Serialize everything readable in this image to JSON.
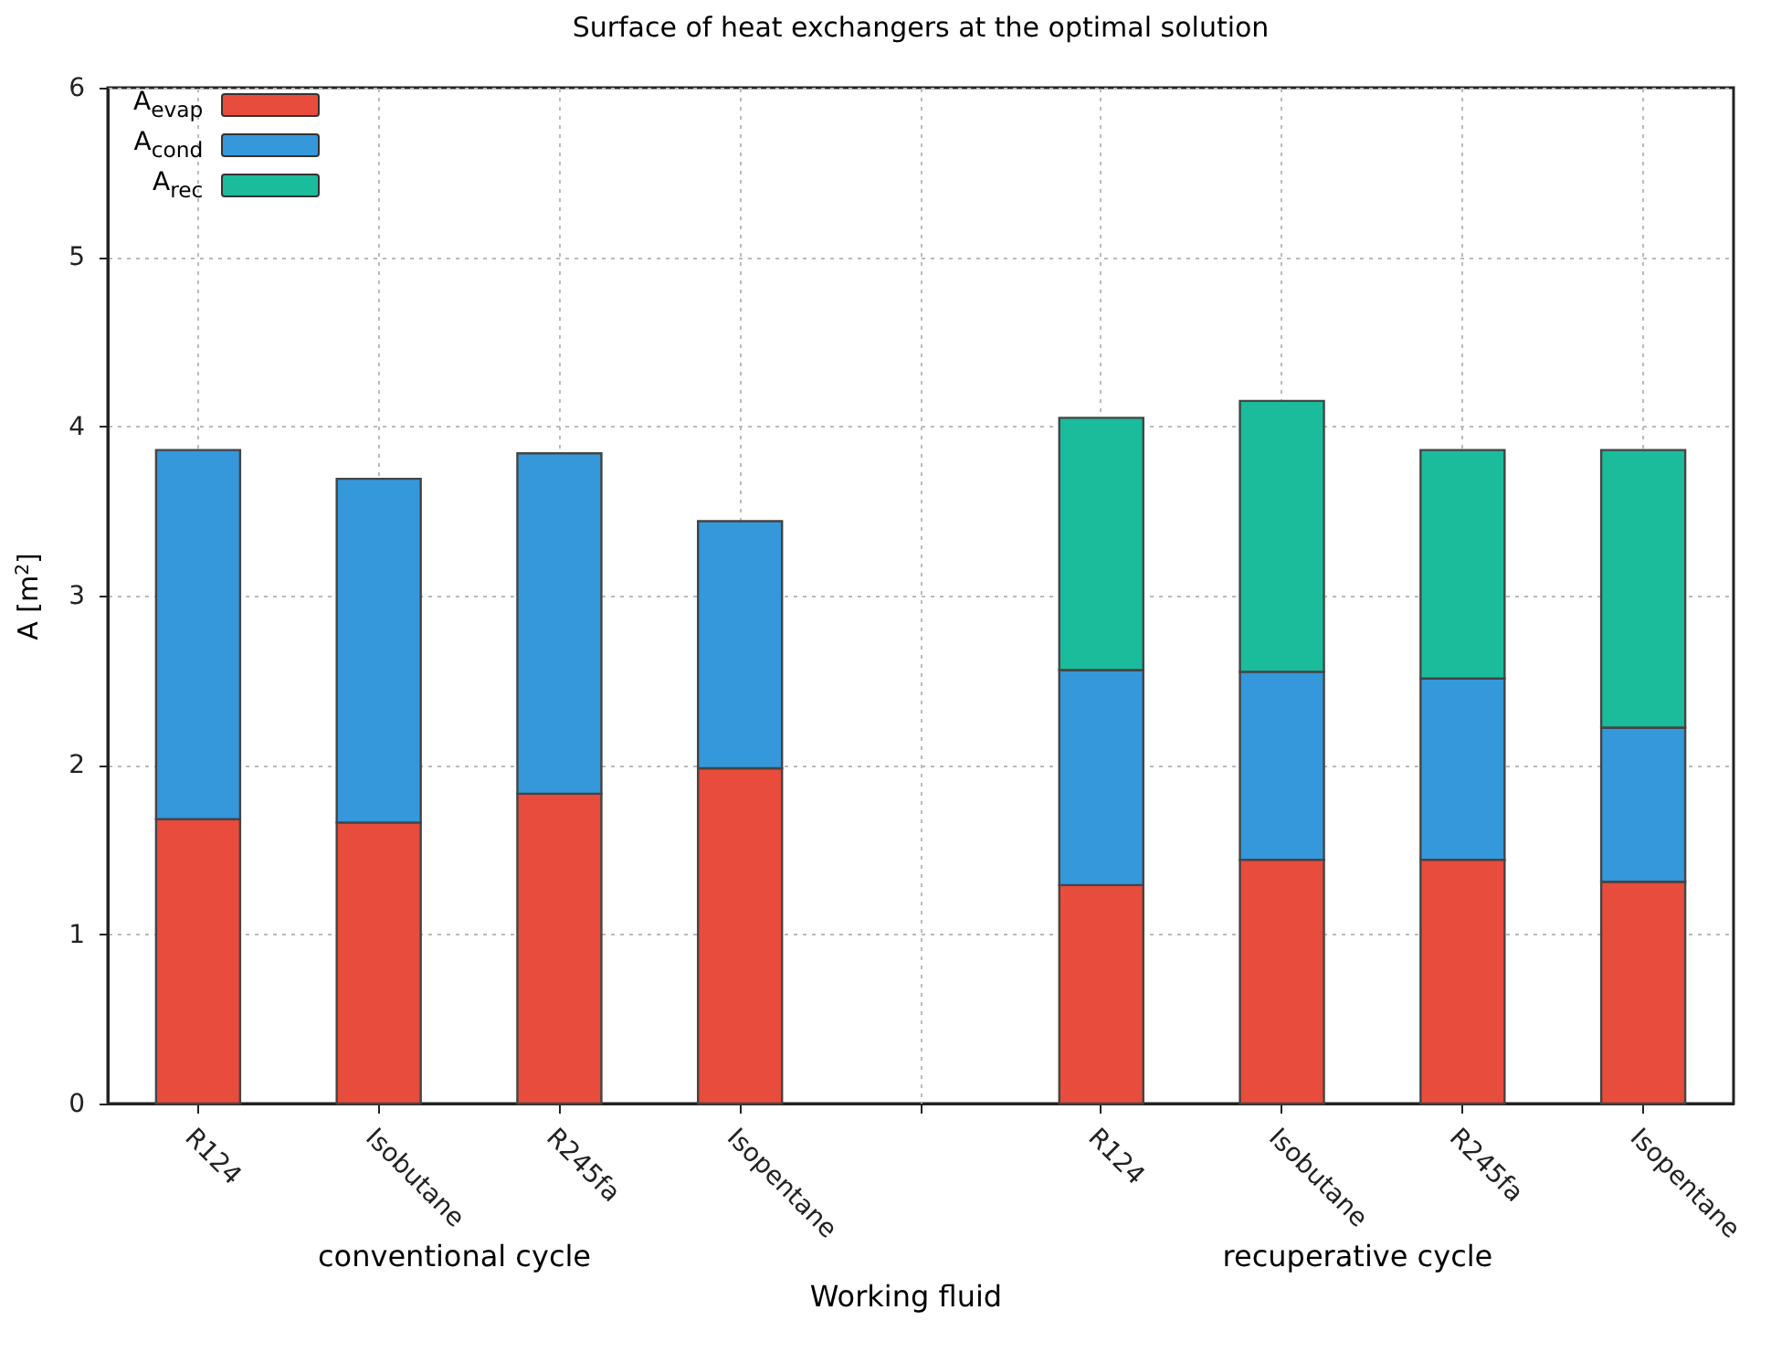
{
  "chart_data": {
    "type": "bar",
    "title": "Surface of heat exchangers at the optimal solution",
    "xlabel": "Working fluid",
    "ylabel": "A [m$^{2}$]",
    "categories": [
      "R124",
      "Isobutane",
      "R245fa",
      "Isopentane",
      null,
      "R124",
      "Isobutane",
      "R245fa",
      "Isopentane"
    ],
    "stacked": true,
    "series": [
      {
        "name": "A$_{evap}$",
        "color": "#e74c3c",
        "values": [
          1.68,
          1.66,
          1.83,
          1.98,
          null,
          1.29,
          1.44,
          1.44,
          1.31
        ]
      },
      {
        "name": "A$_{cond}$",
        "color": "#3498db",
        "values": [
          2.18,
          2.03,
          2.01,
          1.46,
          null,
          1.27,
          1.11,
          1.07,
          0.91
        ]
      },
      {
        "name": "A$_{rec}$",
        "color": "#1abc9c",
        "values": [
          null,
          null,
          null,
          null,
          null,
          1.49,
          1.6,
          1.35,
          1.64
        ]
      }
    ],
    "ylim": [
      0,
      6
    ],
    "yticks": [
      0,
      1,
      2,
      3,
      4,
      5,
      6
    ],
    "grid": true,
    "legend": "top left",
    "annotations": [
      "conventional cycle",
      "recuperative cycle"
    ]
  }
}
